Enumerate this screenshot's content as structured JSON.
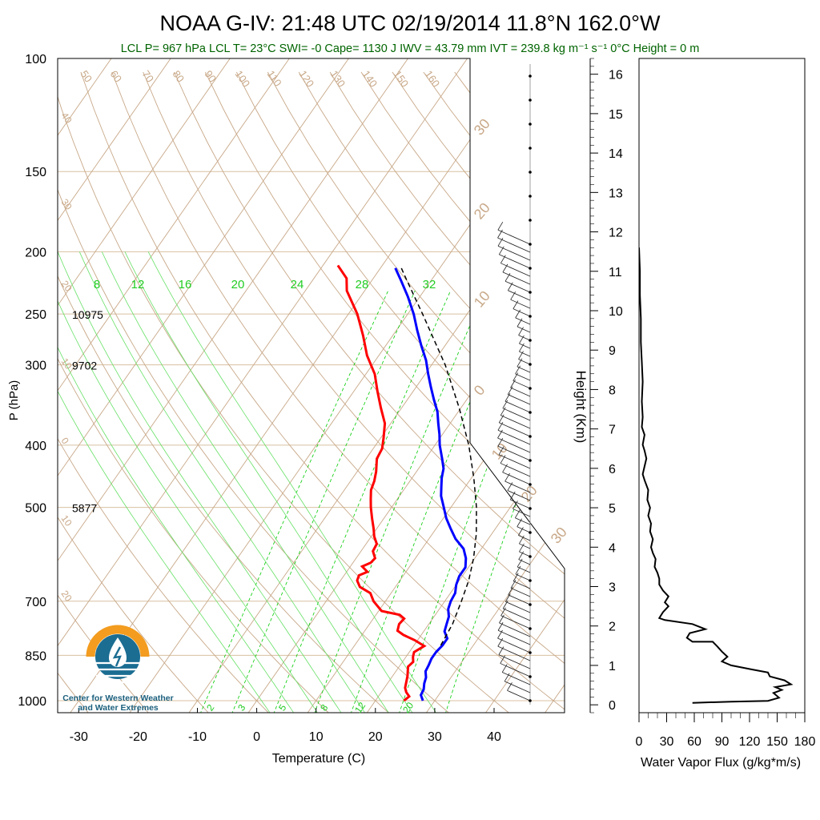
{
  "title": "NOAA G-IV: 21:48 UTC 02/19/2014  11.8°N 162.0°W",
  "subtitle": "LCL P= 967 hPa  LCL T= 23°C  SWI= -0  Cape= 1130 J  IWV = 43.79 mm  IVT = 239.8 kg m⁻¹ s⁻¹  0°C Height = 0 m",
  "colors": {
    "title": "#000000",
    "subtitle": "#006400",
    "temperature": "#ff0000",
    "dewpoint": "#0000ff",
    "parcel": "#000000",
    "isotherm_grid": "#c8a888",
    "mixing_ratio": "#00cc00",
    "flux": "#000000",
    "logo_orange": "#f39c1f",
    "logo_blue": "#1b6d92"
  },
  "logo": {
    "text_line1": "Center for Western Weather",
    "text_line2": "and Water Extremes",
    "icon": "water-drop-sun-icon"
  },
  "chart_data": [
    {
      "type": "line",
      "name": "skew-t",
      "xlabel": "Temperature (C)",
      "ylabel": "P (hPa)",
      "xlim": [
        -33,
        50
      ],
      "ylim": [
        1030,
        100
      ],
      "y_scale": "log",
      "x_ticks": [
        "-30",
        "-20",
        "-10",
        "0",
        "10",
        "20",
        "30",
        "40"
      ],
      "y_ticks": [
        "100",
        "150",
        "200",
        "250",
        "300",
        "400",
        "500",
        "700",
        "850",
        "1000"
      ],
      "height_labels": [
        {
          "p": 250,
          "label": "10975"
        },
        {
          "p": 300,
          "label": "9702"
        },
        {
          "p": 500,
          "label": "5877"
        }
      ],
      "mixing_ratio_labels": [
        "8",
        "12",
        "16",
        "20",
        "24",
        "28",
        "32"
      ],
      "mixing_ratio_bottom_labels": [
        "2",
        "3",
        "5",
        "8",
        "12",
        "20"
      ],
      "isotherm_labels_top": [
        "50",
        "60",
        "70",
        "80",
        "90",
        "100",
        "110",
        "120",
        "130",
        "140",
        "150",
        "160"
      ],
      "dry_adiabat_labels_left": [
        "40",
        "30",
        "20",
        "10",
        "0",
        "10",
        "20"
      ],
      "moist_adiabat_labels_right": [
        "30",
        "20",
        "10",
        "0",
        "10",
        "20",
        "30"
      ],
      "series": [
        {
          "name": "Temperature",
          "points": [
            [
              1000,
              24.8
            ],
            [
              985,
              25.2
            ],
            [
              970,
              24.2
            ],
            [
              955,
              23.5
            ],
            [
              935,
              23.0
            ],
            [
              915,
              22.5
            ],
            [
              900,
              22.0
            ],
            [
              885,
              21.5
            ],
            [
              870,
              21.8
            ],
            [
              855,
              21.2
            ],
            [
              840,
              20.8
            ],
            [
              822,
              21.8
            ],
            [
              805,
              19.5
            ],
            [
              790,
              17.0
            ],
            [
              778,
              15.5
            ],
            [
              760,
              15.0
            ],
            [
              745,
              15.2
            ],
            [
              735,
              14.0
            ],
            [
              725,
              10.5
            ],
            [
              710,
              9.0
            ],
            [
              700,
              8.0
            ],
            [
              680,
              6.5
            ],
            [
              665,
              4.0
            ],
            [
              650,
              2.8
            ],
            [
              638,
              2.5
            ],
            [
              630,
              3.5
            ],
            [
              618,
              2.0
            ],
            [
              610,
              3.0
            ],
            [
              600,
              3.2
            ],
            [
              585,
              2.0
            ],
            [
              570,
              1.8
            ],
            [
              555,
              0.5
            ],
            [
              540,
              -0.5
            ],
            [
              520,
              -2.0
            ],
            [
              500,
              -3.5
            ],
            [
              485,
              -4.5
            ],
            [
              470,
              -5.5
            ],
            [
              455,
              -6.0
            ],
            [
              440,
              -6.8
            ],
            [
              420,
              -8.2
            ],
            [
              405,
              -8.5
            ],
            [
              390,
              -9.5
            ],
            [
              370,
              -11.0
            ],
            [
              350,
              -13.5
            ],
            [
              330,
              -16.0
            ],
            [
              310,
              -18.5
            ],
            [
              290,
              -22.0
            ],
            [
              270,
              -25.0
            ],
            [
              250,
              -28.5
            ],
            [
              230,
              -33.0
            ],
            [
              220,
              -34.5
            ],
            [
              210,
              -37.5
            ]
          ]
        },
        {
          "name": "Dewpoint",
          "points": [
            [
              1000,
              28.0
            ],
            [
              980,
              27.0
            ],
            [
              960,
              26.8
            ],
            [
              940,
              26.2
            ],
            [
              920,
              25.8
            ],
            [
              900,
              25.0
            ],
            [
              880,
              24.8
            ],
            [
              860,
              24.5
            ],
            [
              840,
              24.5
            ],
            [
              820,
              24.8
            ],
            [
              800,
              24.8
            ],
            [
              780,
              23.5
            ],
            [
              760,
              23.0
            ],
            [
              740,
              22.5
            ],
            [
              720,
              21.5
            ],
            [
              700,
              21.0
            ],
            [
              680,
              20.8
            ],
            [
              660,
              20.0
            ],
            [
              640,
              19.5
            ],
            [
              620,
              19.5
            ],
            [
              600,
              18.5
            ],
            [
              580,
              17.0
            ],
            [
              560,
              14.5
            ],
            [
              540,
              12.5
            ],
            [
              520,
              10.5
            ],
            [
              500,
              8.8
            ],
            [
              480,
              7.0
            ],
            [
              465,
              6.0
            ],
            [
              450,
              5.0
            ],
            [
              435,
              4.2
            ],
            [
              420,
              2.8
            ],
            [
              400,
              0.8
            ],
            [
              385,
              -0.5
            ],
            [
              370,
              -2.0
            ],
            [
              355,
              -3.5
            ],
            [
              340,
              -5.5
            ],
            [
              325,
              -7.5
            ],
            [
              310,
              -9.5
            ],
            [
              295,
              -11.5
            ],
            [
              280,
              -14.0
            ],
            [
              265,
              -16.5
            ],
            [
              250,
              -19.0
            ],
            [
              235,
              -22.0
            ],
            [
              222,
              -25.0
            ],
            [
              212,
              -27.5
            ]
          ]
        },
        {
          "name": "Parcel",
          "points": [
            [
              820,
              24.5
            ],
            [
              760,
              24.0
            ],
            [
              700,
              22.8
            ],
            [
              650,
              21.6
            ],
            [
              600,
              19.8
            ],
            [
              550,
              17.4
            ],
            [
              500,
              14.3
            ],
            [
              450,
              10.4
            ],
            [
              400,
              5.7
            ],
            [
              350,
              -0.3
            ],
            [
              300,
              -7.7
            ],
            [
              250,
              -17.5
            ],
            [
              220,
              -24.5
            ],
            [
              210,
              -27.0
            ]
          ]
        }
      ]
    },
    {
      "type": "line",
      "name": "water-vapor-flux",
      "xlabel": "Water Vapor Flux (g/kg*m/s)",
      "ylabel": "Height (Km)",
      "xlim": [
        0,
        180
      ],
      "ylim": [
        -0.2,
        16.4
      ],
      "x_ticks": [
        "0",
        "30",
        "60",
        "90",
        "120",
        "150",
        "180"
      ],
      "y_ticks": [
        "0",
        "1",
        "2",
        "3",
        "4",
        "5",
        "6",
        "7",
        "8",
        "9",
        "10",
        "11",
        "12",
        "13",
        "14",
        "15",
        "16"
      ],
      "series": [
        {
          "name": "Water Vapor Flux",
          "points": [
            [
              58,
              0.05
            ],
            [
              100,
              0.08
            ],
            [
              140,
              0.1
            ],
            [
              152,
              0.18
            ],
            [
              146,
              0.3
            ],
            [
              155,
              0.38
            ],
            [
              148,
              0.45
            ],
            [
              165,
              0.52
            ],
            [
              158,
              0.62
            ],
            [
              142,
              0.72
            ],
            [
              140,
              0.82
            ],
            [
              122,
              0.9
            ],
            [
              100,
              1.0
            ],
            [
              90,
              1.1
            ],
            [
              96,
              1.22
            ],
            [
              90,
              1.35
            ],
            [
              85,
              1.48
            ],
            [
              80,
              1.6
            ],
            [
              58,
              1.6
            ],
            [
              52,
              1.7
            ],
            [
              55,
              1.82
            ],
            [
              72,
              1.92
            ],
            [
              58,
              2.05
            ],
            [
              28,
              2.15
            ],
            [
              22,
              2.2
            ],
            [
              26,
              2.35
            ],
            [
              32,
              2.5
            ],
            [
              28,
              2.6
            ],
            [
              32,
              2.75
            ],
            [
              26,
              2.9
            ],
            [
              22,
              3.05
            ],
            [
              22,
              3.2
            ],
            [
              20,
              3.35
            ],
            [
              17,
              3.5
            ],
            [
              18,
              3.7
            ],
            [
              15,
              3.85
            ],
            [
              13,
              4.0
            ],
            [
              15,
              4.2
            ],
            [
              12,
              4.4
            ],
            [
              13,
              4.6
            ],
            [
              10,
              4.8
            ],
            [
              12,
              5.0
            ],
            [
              9,
              5.2
            ],
            [
              10,
              5.45
            ],
            [
              6,
              5.7
            ],
            [
              4,
              5.85
            ],
            [
              6,
              6.05
            ],
            [
              8,
              6.25
            ],
            [
              6,
              6.45
            ],
            [
              4,
              6.6
            ],
            [
              6,
              6.85
            ],
            [
              3,
              7.05
            ],
            [
              4,
              7.3
            ],
            [
              3,
              7.7
            ],
            [
              4,
              8.2
            ],
            [
              3,
              8.7
            ],
            [
              2,
              9.2
            ],
            [
              2,
              9.8
            ],
            [
              1,
              10.4
            ],
            [
              1,
              11.0
            ],
            [
              0,
              11.6
            ]
          ]
        }
      ]
    }
  ]
}
